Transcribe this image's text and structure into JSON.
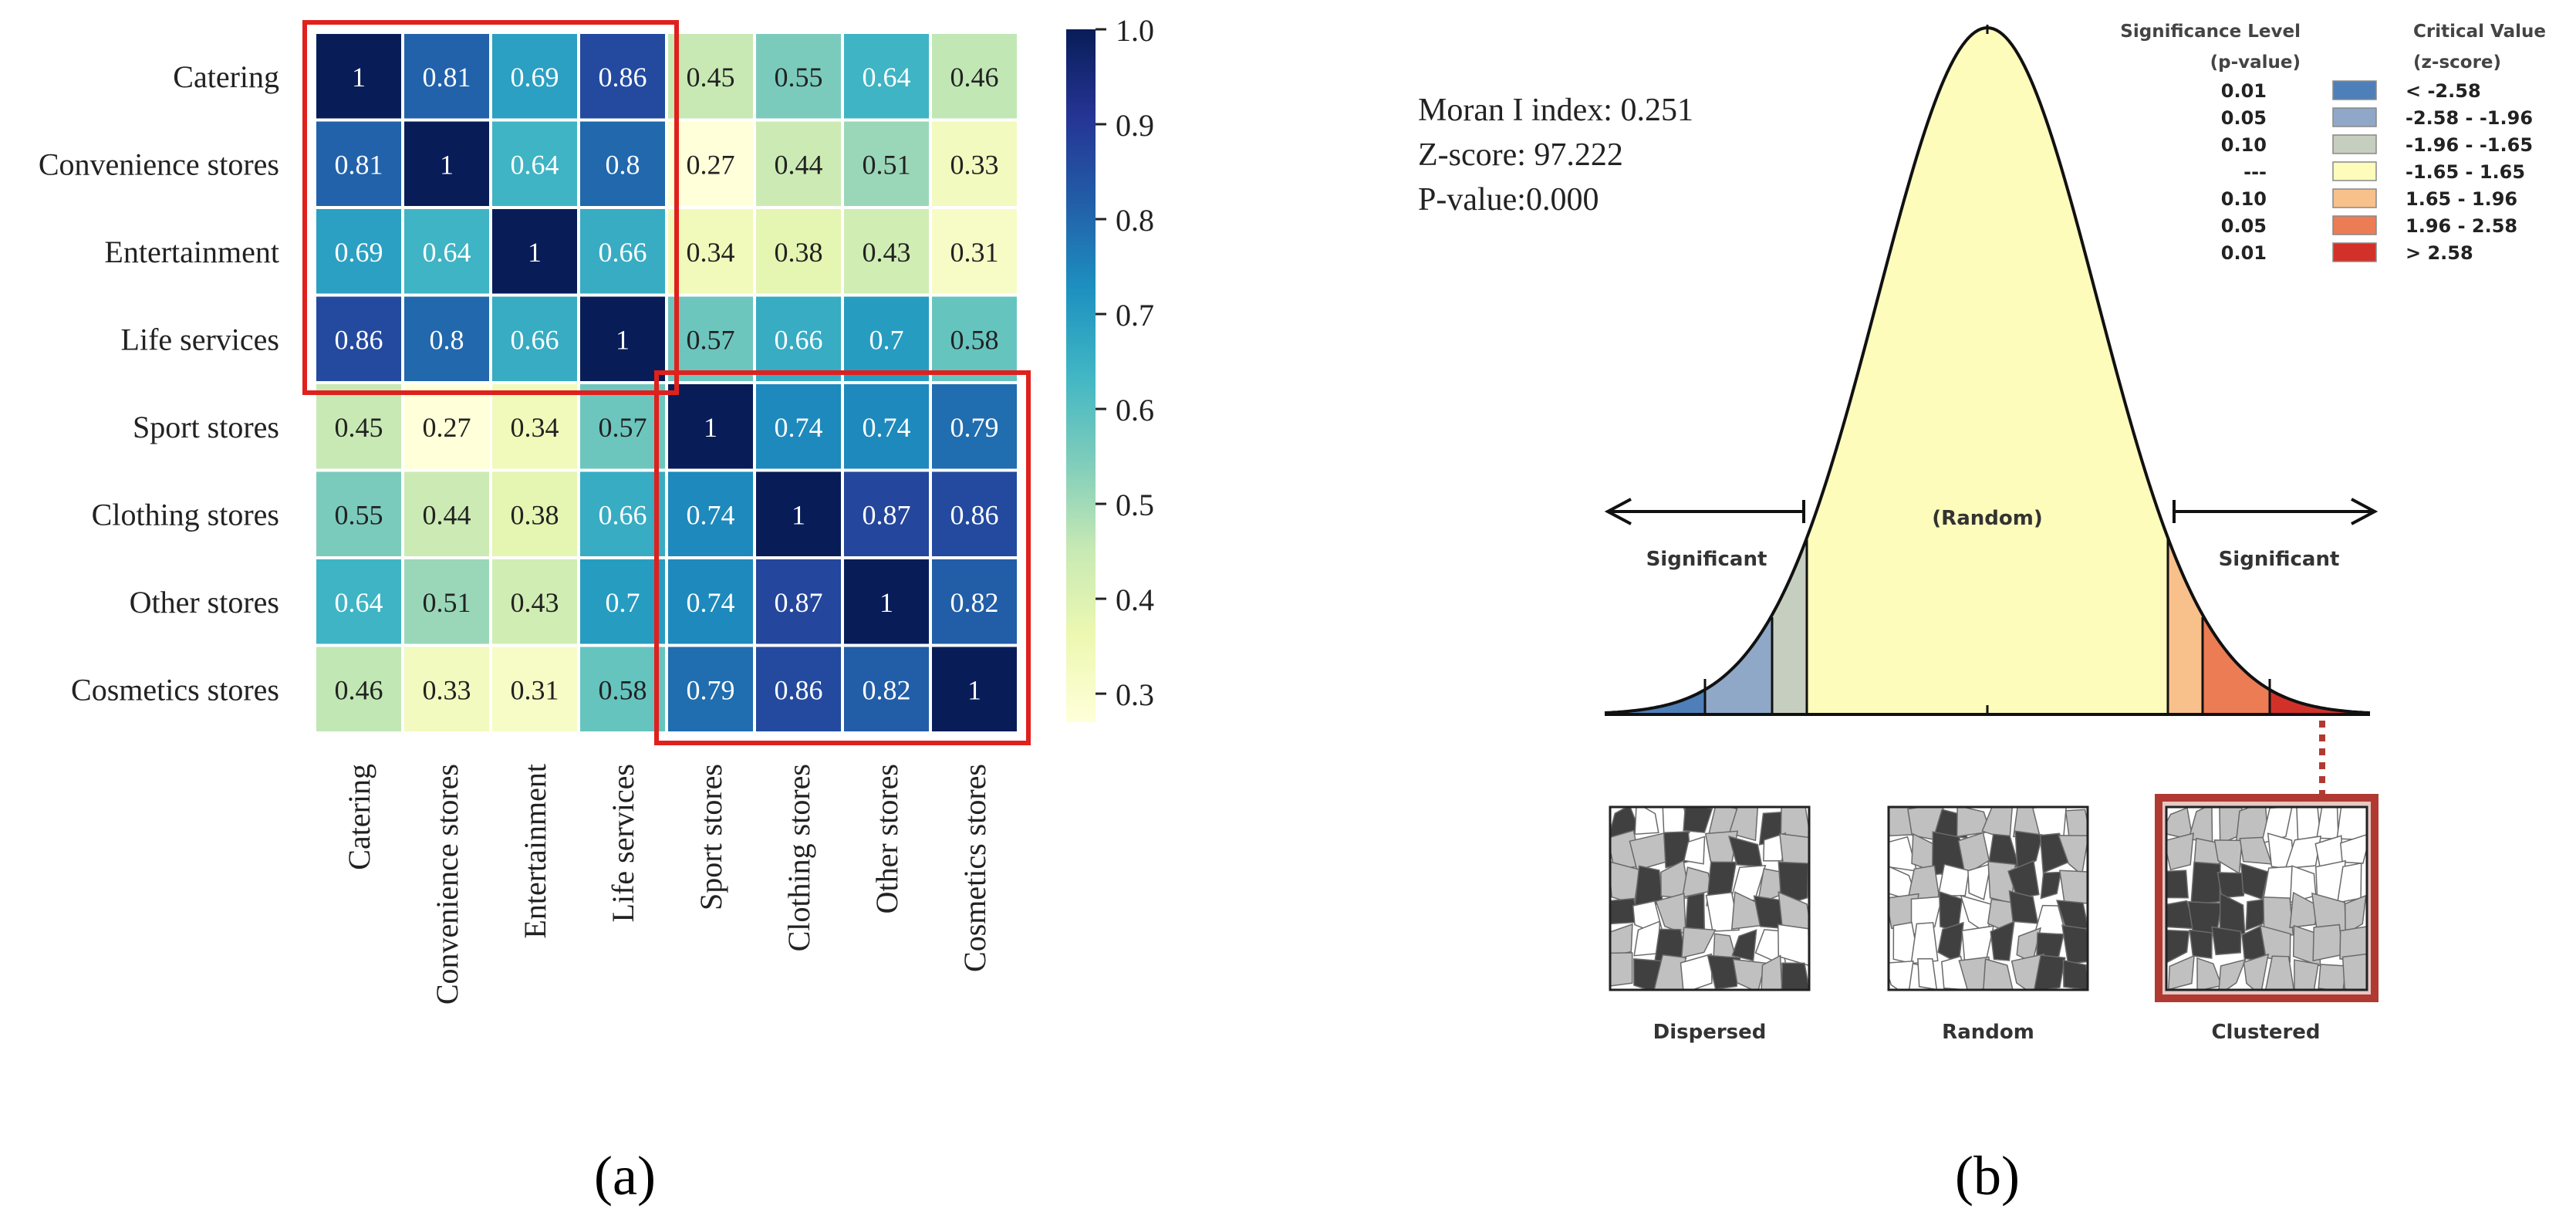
{
  "chart_data": [
    {
      "type": "heatmap",
      "panel_label": "(a)",
      "title": "",
      "rows": [
        "Catering",
        "Convenience stores",
        "Entertainment",
        "Life services",
        "Sport stores",
        "Clothing stores",
        "Other stores",
        "Cosmetics stores"
      ],
      "columns": [
        "Catering",
        "Convenience stores",
        "Entertainment",
        "Life services",
        "Sport stores",
        "Clothing stores",
        "Other stores",
        "Cosmetics stores"
      ],
      "cells": [
        [
          "1",
          "0.81",
          "0.69",
          "0.86",
          "0.45",
          "0.55",
          "0.64",
          "0.46"
        ],
        [
          "0.81",
          "1",
          "0.64",
          "0.8",
          "0.27",
          "0.44",
          "0.51",
          "0.33"
        ],
        [
          "0.69",
          "0.64",
          "1",
          "0.66",
          "0.34",
          "0.38",
          "0.43",
          "0.31"
        ],
        [
          "0.86",
          "0.8",
          "0.66",
          "1",
          "0.57",
          "0.66",
          "0.7",
          "0.58"
        ],
        [
          "0.45",
          "0.27",
          "0.34",
          "0.57",
          "1",
          "0.74",
          "0.74",
          "0.79"
        ],
        [
          "0.55",
          "0.44",
          "0.38",
          "0.66",
          "0.74",
          "1",
          "0.87",
          "0.86"
        ],
        [
          "0.64",
          "0.51",
          "0.43",
          "0.7",
          "0.74",
          "0.87",
          "1",
          "0.82"
        ],
        [
          "0.46",
          "0.33",
          "0.31",
          "0.58",
          "0.79",
          "0.86",
          "0.82",
          "1"
        ]
      ],
      "colorbar": {
        "min": 0.27,
        "max": 1.0,
        "ticks": [
          "1.0",
          "0.9",
          "0.8",
          "0.7",
          "0.6",
          "0.5",
          "0.4",
          "0.3"
        ],
        "colormap": "YlGnBu"
      },
      "highlight_groups": [
        {
          "rows": [
            0,
            3
          ],
          "cols": [
            0,
            3
          ]
        },
        {
          "rows": [
            4,
            7
          ],
          "cols": [
            4,
            7
          ]
        }
      ]
    },
    {
      "type": "diagram",
      "panel_label": "(b)",
      "stats": [
        "Moran I index: 0.251",
        "Z-score: 97.222",
        "P-value:0.000"
      ],
      "legend": {
        "header_left": [
          "Significance Level",
          "(p-value)"
        ],
        "header_right": [
          "Critical Value",
          "(z-score)"
        ],
        "rows": [
          {
            "p": "0.01",
            "z": "< -2.58",
            "color": "#4f7fb8"
          },
          {
            "p": "0.05",
            "z": "-2.58 - -1.96",
            "color": "#8fa8c8"
          },
          {
            "p": "0.10",
            "z": "-1.96 - -1.65",
            "color": "#c6cfbf"
          },
          {
            "p": "---",
            "z": "-1.65 - 1.65",
            "color": "#fdfcbb"
          },
          {
            "p": "0.10",
            "z": "1.65 - 1.96",
            "color": "#f8c08b"
          },
          {
            "p": "0.05",
            "z": "1.96 - 2.58",
            "color": "#ec7c53"
          },
          {
            "p": "0.01",
            "z": "> 2.58",
            "color": "#d2312a"
          }
        ]
      },
      "curve_labels": {
        "center": "(Random)",
        "left": "Significant",
        "right": "Significant"
      },
      "maps": [
        "Dispersed",
        "Random",
        "Clustered"
      ],
      "highlight_map": "Clustered",
      "colors": {
        "highlight": "#b03a32",
        "dark_poly": "#404040",
        "mid_poly": "#c0c0c0",
        "light_poly": "#ffffff"
      }
    }
  ]
}
